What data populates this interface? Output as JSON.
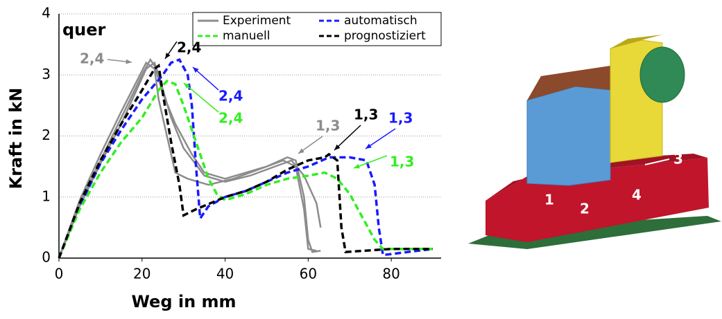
{
  "chart_data": {
    "type": "line",
    "xlabel": "Weg in mm",
    "ylabel": "Kraft in kN",
    "xlim": [
      0,
      92
    ],
    "ylim": [
      0,
      4
    ],
    "xticks": [
      0,
      20,
      40,
      60,
      80
    ],
    "yticks": [
      0,
      1,
      2,
      3,
      4
    ],
    "grid": true,
    "series": [
      {
        "name": "Experiment",
        "color": "#8c8c8c",
        "dash": false,
        "x": [
          0,
          5,
          10,
          15,
          20,
          22,
          23,
          25,
          28,
          32,
          35,
          40,
          45,
          50,
          55,
          57,
          59,
          60,
          61,
          63
        ],
        "values": [
          0,
          0.9,
          1.6,
          2.3,
          3.0,
          3.25,
          3.15,
          2.7,
          2.2,
          1.7,
          1.4,
          1.3,
          1.4,
          1.5,
          1.65,
          1.6,
          1.0,
          0.3,
          0.1,
          0.12
        ]
      },
      {
        "color": "#8c8c8c",
        "dash": false,
        "x": [
          0,
          5,
          10,
          15,
          21,
          23,
          24,
          26,
          28,
          31,
          36,
          42,
          48,
          54,
          57,
          59,
          60,
          62
        ],
        "values": [
          0,
          0.95,
          1.7,
          2.4,
          3.2,
          3.1,
          2.6,
          2.0,
          1.4,
          1.3,
          1.2,
          1.3,
          1.45,
          1.6,
          1.5,
          0.8,
          0.15,
          0.12
        ]
      },
      {
        "color": "#8c8c8c",
        "dash": false,
        "x": [
          0,
          5,
          10,
          15,
          21,
          23,
          24,
          27,
          30,
          35,
          40,
          46,
          52,
          56,
          59,
          62,
          63
        ],
        "values": [
          0,
          0.85,
          1.55,
          2.2,
          3.1,
          3.2,
          3.0,
          2.3,
          1.8,
          1.35,
          1.25,
          1.35,
          1.5,
          1.6,
          1.35,
          0.9,
          0.5
        ]
      },
      {
        "name": "automatisch",
        "color": "#1a1aff",
        "dash": true,
        "x": [
          0,
          5,
          10,
          15,
          20,
          25,
          27,
          29,
          31,
          32,
          33,
          34,
          36,
          40,
          45,
          50,
          55,
          60,
          65,
          70,
          74,
          76,
          77,
          78,
          90
        ],
        "values": [
          0,
          0.85,
          1.55,
          2.1,
          2.6,
          3.0,
          3.2,
          3.25,
          3.0,
          2.5,
          1.5,
          0.65,
          0.85,
          1.0,
          1.1,
          1.25,
          1.4,
          1.5,
          1.65,
          1.65,
          1.6,
          1.2,
          0.5,
          0.05,
          0.15
        ]
      },
      {
        "name": "manuell",
        "color": "#33ee22",
        "dash": true,
        "x": [
          0,
          5,
          10,
          15,
          20,
          24,
          26,
          28,
          30,
          33,
          36,
          38,
          40,
          45,
          50,
          55,
          60,
          64,
          67,
          70,
          72,
          74,
          76,
          78,
          90
        ],
        "values": [
          0,
          0.8,
          1.4,
          1.9,
          2.3,
          2.75,
          2.9,
          2.85,
          2.5,
          1.9,
          1.3,
          1.05,
          0.95,
          1.05,
          1.2,
          1.3,
          1.35,
          1.4,
          1.3,
          1.05,
          0.8,
          0.55,
          0.3,
          0.15,
          0.15
        ]
      },
      {
        "name": "prognostiziert",
        "color": "#000000",
        "dash": true,
        "x": [
          0,
          5,
          10,
          15,
          20,
          23,
          24,
          25,
          27,
          29,
          30,
          33,
          40,
          45,
          50,
          55,
          60,
          64,
          65,
          67,
          68,
          69,
          80,
          90
        ],
        "values": [
          0,
          0.9,
          1.6,
          2.2,
          2.75,
          3.1,
          3.15,
          2.7,
          1.9,
          1.2,
          0.7,
          0.8,
          1.0,
          1.1,
          1.25,
          1.45,
          1.6,
          1.65,
          1.7,
          1.6,
          0.5,
          0.1,
          0.15,
          0.15
        ]
      }
    ],
    "annotations": [
      {
        "text": "quer",
        "color": "#000000"
      },
      {
        "text": "2,4",
        "color": "#8c8c8c"
      },
      {
        "text": "2,4",
        "color": "#000000"
      },
      {
        "text": "2,4",
        "color": "#1a1aff"
      },
      {
        "text": "2,4",
        "color": "#33ee22"
      },
      {
        "text": "1,3",
        "color": "#8c8c8c"
      },
      {
        "text": "1,3",
        "color": "#000000"
      },
      {
        "text": "1,3",
        "color": "#1a1aff"
      },
      {
        "text": "1,3",
        "color": "#33ee22"
      }
    ]
  },
  "diagram": {
    "labels": [
      "1",
      "2",
      "3",
      "4"
    ]
  }
}
